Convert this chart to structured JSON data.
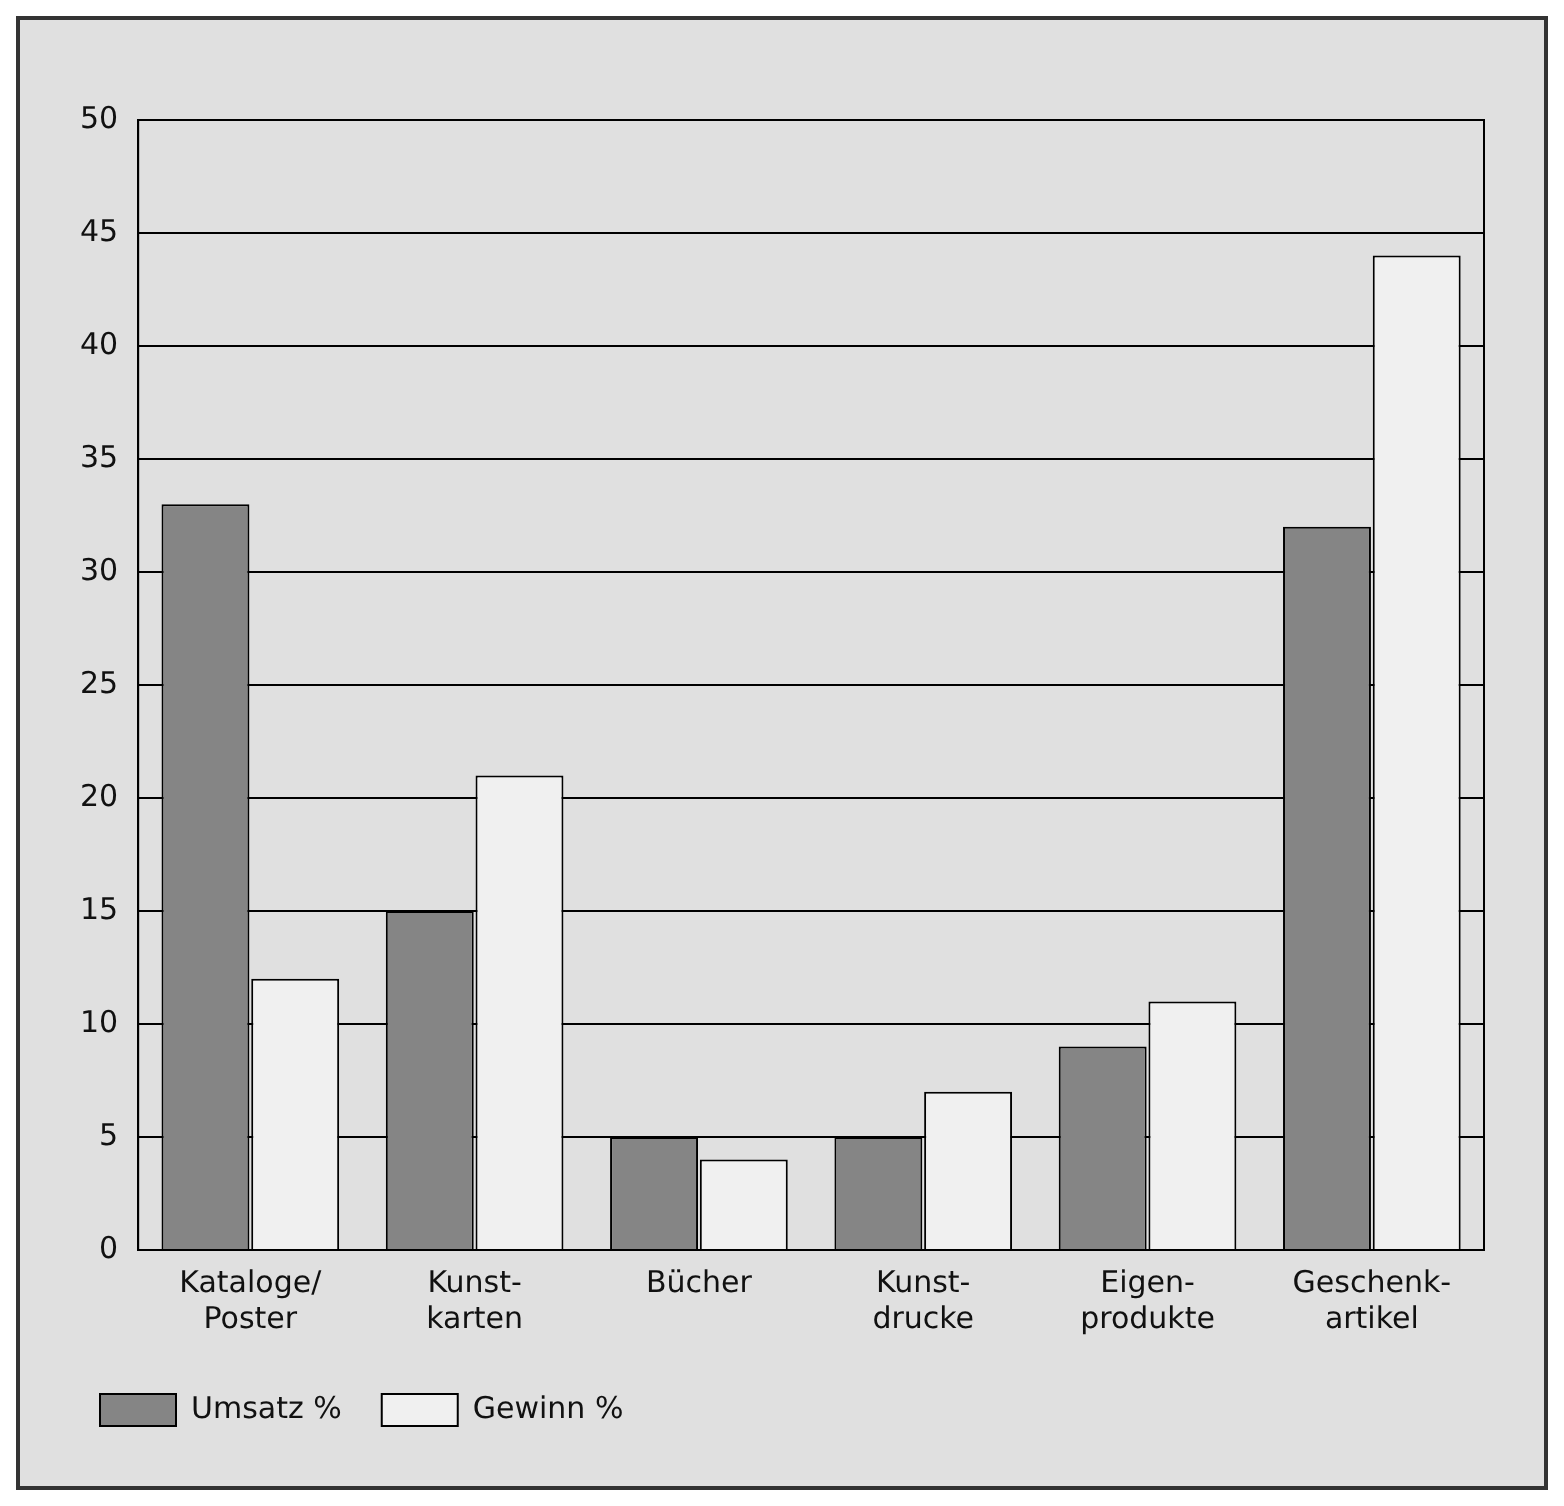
{
  "chart_data": {
    "type": "bar",
    "categories": [
      "Kataloge/\nPoster",
      "Kunst-\nkarten",
      "Bücher",
      "Kunst-\ndrucke",
      "Eigen-\nprodukte",
      "Geschenk-\nartikel"
    ],
    "series": [
      {
        "name": "Umsatz %",
        "color": "#858585",
        "values": [
          33,
          15,
          5,
          5,
          9,
          32
        ]
      },
      {
        "name": "Gewinn %",
        "color": "#f0f0f0",
        "values": [
          12,
          21,
          4,
          7,
          11,
          44
        ]
      }
    ],
    "ylim": [
      0,
      50
    ],
    "yticks": [
      0,
      5,
      10,
      15,
      20,
      25,
      30,
      35,
      40,
      45,
      50
    ],
    "grid": "y",
    "legend": "bottom left"
  }
}
